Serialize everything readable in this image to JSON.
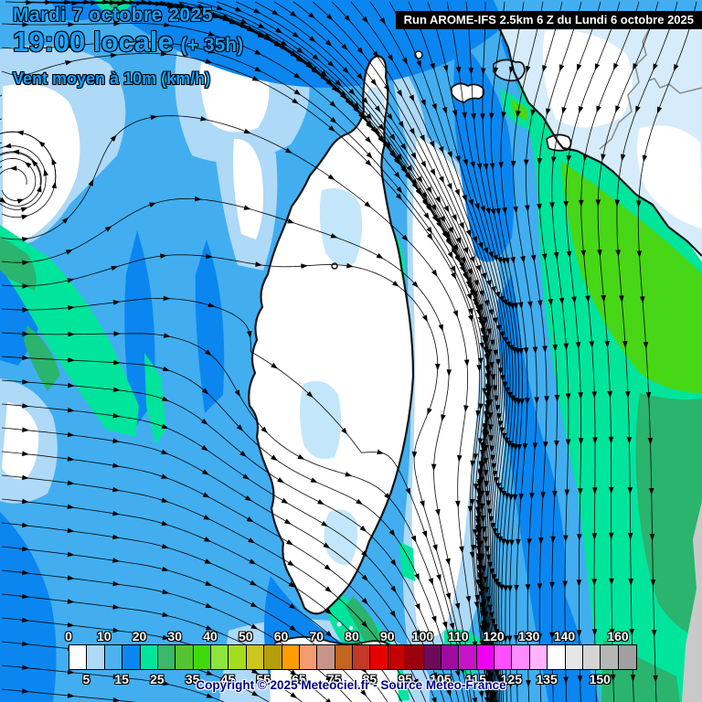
{
  "header": {
    "date_line": "Mardi 7 octobre 2025",
    "time_line": "19:00 locale",
    "time_offset": "(+ 35h)",
    "variable_line": "Vent moyen à 10m (km/h)",
    "run_info": "Run AROME-IFS 2.5km 6 Z du Lundi 6 octobre 2025"
  },
  "footer": {
    "copyright": "Copyright © 2025 Meteociel.fr - Source Meteo-France"
  },
  "chart_data": {
    "type": "heatmap",
    "title": "Vent moyen à 10m (km/h)",
    "legend": {
      "unit": "km/h",
      "value_min": 0,
      "value_max": 160,
      "box_step": 5,
      "top_labels": [
        0,
        10,
        20,
        30,
        40,
        50,
        60,
        70,
        80,
        90,
        100,
        110,
        120,
        130,
        140,
        160
      ],
      "bottom_labels": [
        5,
        15,
        25,
        35,
        45,
        55,
        65,
        75,
        85,
        95,
        105,
        115,
        125,
        135,
        150
      ],
      "colors": [
        "#ffffff",
        "#aed9f7",
        "#4db3f0",
        "#0b86f0",
        "#00e49c",
        "#39b96a",
        "#55c52f",
        "#3eda10",
        "#8de43c",
        "#a4dc1e",
        "#cdc41e",
        "#b49e0a",
        "#ff9c00",
        "#f49b70",
        "#c99488",
        "#c2651e",
        "#c43828",
        "#e60000",
        "#c40000",
        "#99000e",
        "#6e0a5a",
        "#a00aa0",
        "#c814c8",
        "#f000f0",
        "#ff50ff",
        "#ff8cff",
        "#ffb4ff",
        "#ffffff",
        "#e6e6e6",
        "#d4d4d4",
        "#b6b6b6",
        "#a0a0a0"
      ]
    }
  },
  "colors": {
    "title_blue": "#18a0ff",
    "runbar_bg": "#000000",
    "runbar_text": "#ffffff",
    "copyright_navy": "#000082",
    "sea_base": "#42aef0",
    "sea_light": "#aed9f7",
    "sea_dark": "#0b86f0",
    "calm_white": "#ffffff",
    "wind_green": "#00e49c",
    "wind_green_dark": "#2ab46e",
    "wind_green_vivid": "#47d716",
    "land_pale": "#d6ecfb",
    "coast_black": "#141414",
    "nodata_gray": "#c9c9c9"
  }
}
